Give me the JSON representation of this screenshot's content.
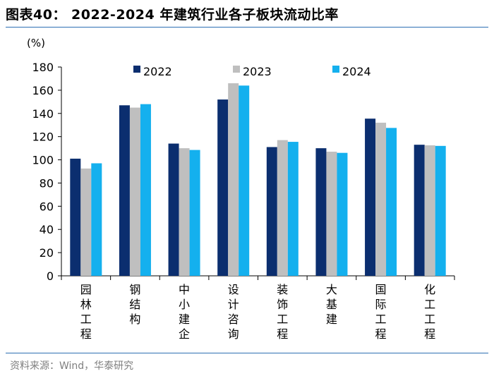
{
  "figure": {
    "title": "图表40： 2022-2024 年建筑行业各子板块流动比率",
    "source": "资料来源：Wind，华泰研究"
  },
  "colors": {
    "rule": "#2d6fb3",
    "axis": "#000000",
    "source_text": "#7f7f7f"
  },
  "chart_data": {
    "type": "bar",
    "title": "2022-2024 年建筑行业各子板块流动比率",
    "ylabel": "(%)",
    "xlabel": "",
    "ylim": [
      0,
      180
    ],
    "yticks": [
      0,
      20,
      40,
      60,
      80,
      100,
      120,
      140,
      160,
      180
    ],
    "grid": false,
    "legend_position": "top",
    "categories": [
      "园林工程",
      "钢结构",
      "中小建企",
      "设计咨询",
      "装饰工程",
      "大基建",
      "国际工程",
      "化工工程"
    ],
    "series": [
      {
        "name": "2022",
        "color": "#0b2e6f",
        "values": [
          101,
          147,
          114,
          152,
          111,
          110,
          135.5,
          113
        ]
      },
      {
        "name": "2023",
        "color": "#bfbfbf",
        "values": [
          92.5,
          145,
          110,
          166,
          117,
          107,
          132,
          112.5
        ]
      },
      {
        "name": "2024",
        "color": "#14b0ee",
        "values": [
          97,
          148,
          108.5,
          164,
          115.5,
          106,
          127.5,
          112
        ]
      }
    ]
  }
}
